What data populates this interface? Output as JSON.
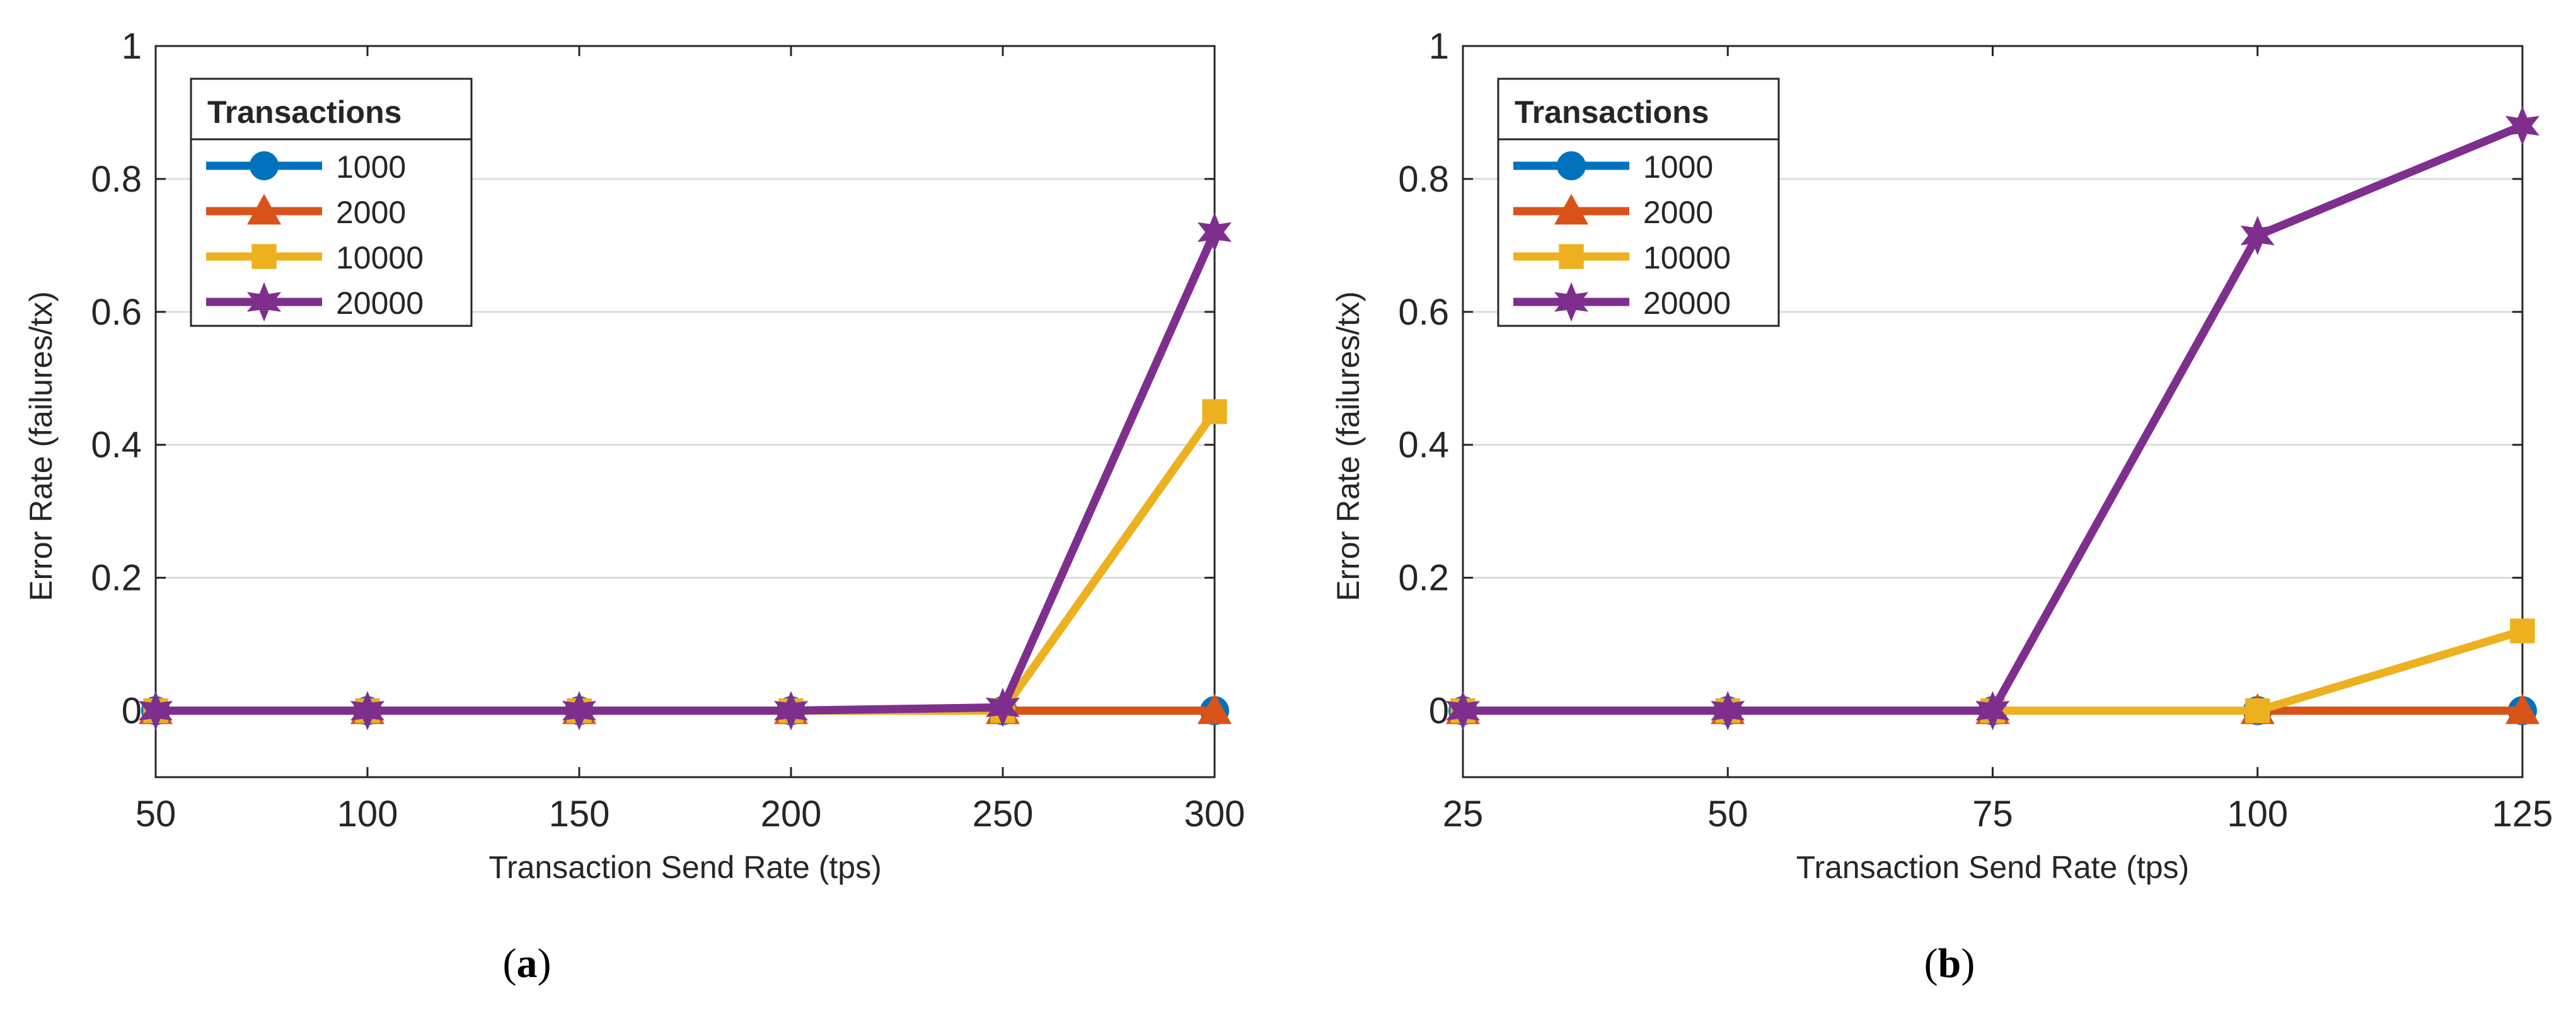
{
  "chart_data": [
    {
      "type": "line",
      "panel_label": "(a)",
      "panel_letter": "a",
      "xlabel": "Transaction Send Rate (tps)",
      "ylabel": "Error Rate (failures/tx)",
      "x": [
        50,
        100,
        150,
        200,
        250,
        300
      ],
      "x_tick_labels": [
        "50",
        "100",
        "150",
        "200",
        "250",
        "300"
      ],
      "xlim": [
        50,
        300
      ],
      "ylim": [
        -0.1,
        1
      ],
      "y_ticks": [
        0,
        0.2,
        0.4,
        0.6,
        0.8,
        1
      ],
      "y_tick_labels": [
        "0",
        "0.2",
        "0.4",
        "0.6",
        "0.8",
        "1"
      ],
      "grid": "horizontal",
      "legend": {
        "title": "Transactions",
        "location": "top-left"
      },
      "series": [
        {
          "name": "1000",
          "color": "#0072BD",
          "marker": "circle",
          "values": [
            0,
            0,
            0,
            0,
            0,
            0
          ]
        },
        {
          "name": "2000",
          "color": "#D95319",
          "marker": "triangle",
          "values": [
            0,
            0,
            0,
            0,
            0,
            0
          ]
        },
        {
          "name": "10000",
          "color": "#EDB120",
          "marker": "square",
          "values": [
            0,
            0,
            0,
            0,
            0,
            0.45
          ]
        },
        {
          "name": "20000",
          "color": "#7E2F8E",
          "marker": "star",
          "values": [
            0,
            0,
            0,
            0,
            0.005,
            0.72
          ]
        }
      ]
    },
    {
      "type": "line",
      "panel_label": "(b)",
      "panel_letter": "b",
      "xlabel": "Transaction Send Rate (tps)",
      "ylabel": "Error Rate (failures/tx)",
      "x": [
        25,
        50,
        75,
        100,
        125
      ],
      "x_tick_labels": [
        "25",
        "50",
        "75",
        "100",
        "125"
      ],
      "xlim": [
        25,
        125
      ],
      "ylim": [
        -0.1,
        1
      ],
      "y_ticks": [
        0,
        0.2,
        0.4,
        0.6,
        0.8,
        1
      ],
      "y_tick_labels": [
        "0",
        "0.2",
        "0.4",
        "0.6",
        "0.8",
        "1"
      ],
      "grid": "horizontal",
      "legend": {
        "title": "Transactions",
        "location": "top-left"
      },
      "series": [
        {
          "name": "1000",
          "color": "#0072BD",
          "marker": "circle",
          "values": [
            0,
            0,
            0,
            0,
            0
          ]
        },
        {
          "name": "2000",
          "color": "#D95319",
          "marker": "triangle",
          "values": [
            0,
            0,
            0,
            0,
            0
          ]
        },
        {
          "name": "10000",
          "color": "#EDB120",
          "marker": "square",
          "values": [
            0,
            0,
            0,
            0,
            0.12
          ]
        },
        {
          "name": "20000",
          "color": "#7E2F8E",
          "marker": "star",
          "values": [
            0,
            0,
            0,
            0.715,
            0.88
          ]
        }
      ]
    }
  ]
}
